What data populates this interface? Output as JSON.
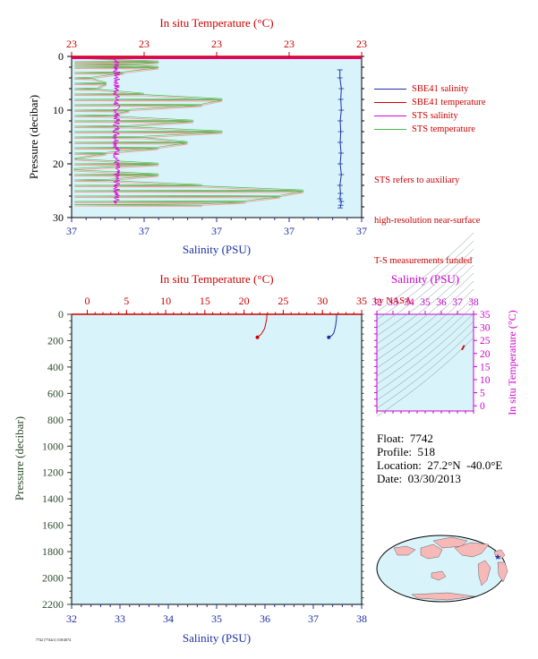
{
  "chart_data": [
    {
      "type": "line",
      "title": "",
      "top_axis_label": "In situ Temperature (°C)",
      "top_axis_ticks": [
        "23",
        "23",
        "23",
        "23",
        "23"
      ],
      "bottom_axis_label": "Salinity (PSU)",
      "bottom_axis_ticks": [
        "37",
        "37",
        "37",
        "37",
        "37"
      ],
      "ylabel": "Pressure (decibar)",
      "y_ticks": [
        "0",
        "10",
        "20",
        "30"
      ],
      "ylim": [
        30,
        0
      ],
      "xlim": [
        0,
        1
      ],
      "series": [
        {
          "name": "SBE41 salinity",
          "color": "#1c2fa8",
          "x": [
            0.925,
            0.925,
            0.93,
            0.928,
            0.93,
            0.926,
            0.928,
            0.926,
            0.929,
            0.926,
            0.93,
            0.925,
            0.927,
            0.925,
            0.93,
            0.928,
            0.926
          ],
          "y": [
            2.5,
            4,
            6,
            8,
            10,
            12,
            14,
            16,
            18,
            20,
            22,
            24,
            25.5,
            26.5,
            27,
            27.7,
            28.2
          ]
        },
        {
          "name": "SBE41 temperature",
          "color": "#d40000",
          "x": [
            0.0,
            0.0
          ],
          "y": [
            0.2,
            0.4
          ]
        }
      ],
      "sts_series": [
        {
          "name": "STS salinity",
          "color": "#dd00dd",
          "x_center": 0.155,
          "x_jitter": 0.012,
          "y_range": [
            0.3,
            27.5
          ]
        },
        {
          "name": "STS temperature",
          "color": "#48b848",
          "steps": [
            [
              1,
              0.3
            ],
            [
              1.5,
              0.22
            ],
            [
              2,
              0.3
            ],
            [
              3,
              0.18
            ],
            [
              4,
              0.07
            ],
            [
              5,
              0.12
            ],
            [
              6,
              0.09
            ],
            [
              7,
              0.25
            ],
            [
              8,
              0.52
            ],
            [
              9,
              0.45
            ],
            [
              10,
              0.2
            ],
            [
              11,
              0.14
            ],
            [
              12,
              0.42
            ],
            [
              13,
              0.2
            ],
            [
              14,
              0.52
            ],
            [
              15,
              0.25
            ],
            [
              16,
              0.4
            ],
            [
              17,
              0.3
            ],
            [
              18,
              0.12
            ],
            [
              19,
              0.02
            ],
            [
              20,
              0.3
            ],
            [
              21,
              0.01
            ],
            [
              22,
              0.3
            ],
            [
              23,
              0.13
            ],
            [
              24,
              0.45
            ],
            [
              25,
              0.8
            ],
            [
              26,
              0.72
            ],
            [
              27,
              0.6
            ],
            [
              27.6,
              0.45
            ]
          ]
        }
      ]
    },
    {
      "type": "line",
      "title": "",
      "top_axis_label": "In situ Temperature (°C)",
      "top_axis_ticks": [
        "0",
        "5",
        "10",
        "15",
        "20",
        "25",
        "30",
        "35"
      ],
      "xlim_temperature": [
        -2,
        35
      ],
      "bottom_axis_label": "Salinity (PSU)",
      "bottom_axis_ticks": [
        "32",
        "33",
        "34",
        "35",
        "36",
        "37",
        "38"
      ],
      "xlim_salinity": [
        32,
        38
      ],
      "ylabel": "Pressure (decibar)",
      "y_ticks": [
        "0",
        "200",
        "400",
        "600",
        "800",
        "1000",
        "1200",
        "1400",
        "1600",
        "1800",
        "2000",
        "2200"
      ],
      "ylim": [
        2200,
        0
      ],
      "series": [
        {
          "name": "Temperature",
          "color": "#d40000",
          "x": [
            22.9,
            22.9,
            22.8,
            22.7,
            22.6,
            22.4,
            22.2,
            21.9,
            21.7
          ],
          "y": [
            0,
            30,
            60,
            90,
            110,
            130,
            150,
            165,
            175
          ]
        },
        {
          "name": "Salinity",
          "color": "#1c2fa8",
          "x": [
            37.48,
            37.48,
            37.47,
            37.46,
            37.44,
            37.42,
            37.38,
            37.32
          ],
          "y": [
            0,
            30,
            60,
            90,
            120,
            145,
            162,
            175
          ]
        }
      ]
    },
    {
      "type": "scatter",
      "title": "",
      "top_axis_label": "Salinity (PSU)",
      "top_axis_ticks": [
        "32",
        "33",
        "34",
        "35",
        "36",
        "37",
        "38"
      ],
      "xlim": [
        32,
        38
      ],
      "right_axis_label": "In situ Temperature (°C)",
      "right_axis_ticks": [
        "0",
        "5",
        "10",
        "15",
        "20",
        "25",
        "30",
        "35"
      ],
      "ylim": [
        -2,
        35
      ],
      "points": [
        {
          "x": 37.4,
          "y": 22.8
        },
        {
          "x": 37.35,
          "y": 22.2
        },
        {
          "x": 37.3,
          "y": 21.7
        }
      ]
    }
  ],
  "legend": {
    "items": [
      {
        "label": "SBE41 salinity",
        "color": "#1c2fa8"
      },
      {
        "label": "SBE41 temperature",
        "color": "#d40000"
      },
      {
        "label": "STS salinity",
        "color": "#dd00dd"
      },
      {
        "label": "STS temperature",
        "color": "#48b848"
      }
    ],
    "note_lines": [
      "STS refers to auxiliary",
      "high-resolution near-surface",
      "T-S measurements funded",
      "by NASA."
    ]
  },
  "info": {
    "float": "Float:  7742",
    "profile": "Profile:  518",
    "location": "Location:  27.2°N  -40.0°E",
    "date": "Date:  03/30/2013"
  },
  "credit": "7742 (7742r1) 518/4074"
}
